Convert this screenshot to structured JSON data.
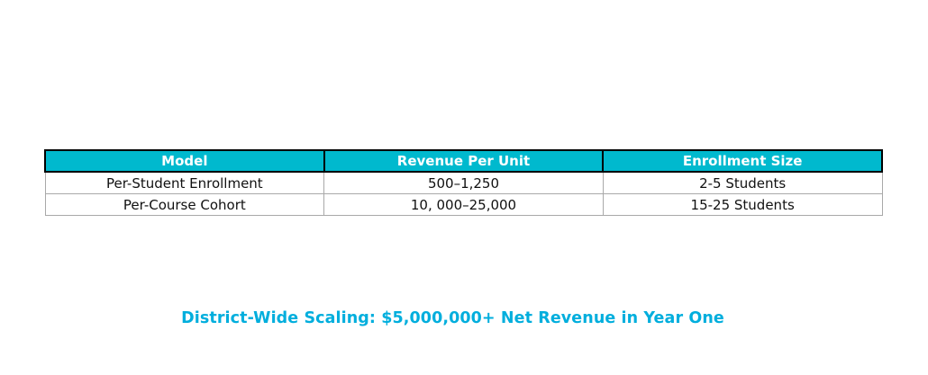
{
  "colors": {
    "page_bg": "#ffffff",
    "header_bg": "#00b9ce",
    "header_text": "#ffffff",
    "header_border": "#000000",
    "body_border": "#a9a9a9",
    "body_text": "#111111",
    "caption": "#00aedd"
  },
  "table": {
    "columns": [
      "Model",
      "Revenue Per Unit",
      "Enrollment Size"
    ],
    "rows": [
      [
        "Per-Student Enrollment",
        "500–1,250",
        "2-5 Students"
      ],
      [
        "Per-Course Cohort",
        "10, 000–25,000",
        "15-25 Students"
      ]
    ]
  },
  "caption": {
    "text": "District-Wide Scaling: $5,000,000+ Net Revenue in Year One"
  },
  "chart_data": {
    "type": "table",
    "columns": [
      "Model",
      "Revenue Per Unit",
      "Enrollment Size"
    ],
    "rows": [
      [
        "Per-Student Enrollment",
        "500–1,250",
        "2-5 Students"
      ],
      [
        "Per-Course Cohort",
        "10, 000–25,000",
        "15-25 Students"
      ]
    ],
    "caption": "District-Wide Scaling: $5,000,000+ Net Revenue in Year One",
    "layout_hints": {
      "header_fill": "#00b9ce",
      "header_text_color": "#ffffff",
      "cell_alignment": "center",
      "grid": "on"
    }
  }
}
